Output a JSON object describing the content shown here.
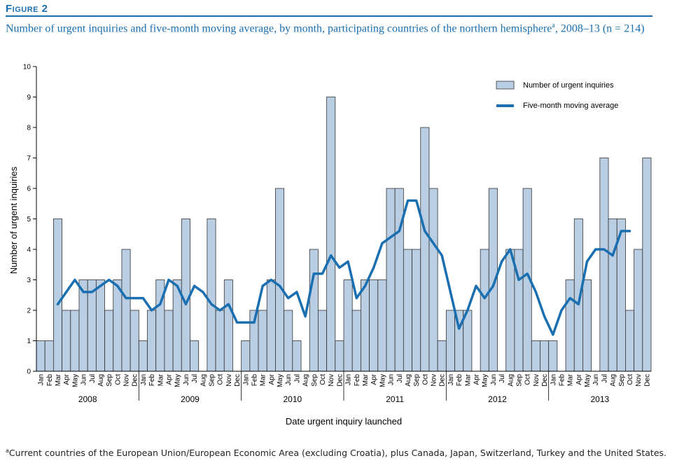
{
  "figure": {
    "label": "Figure 2",
    "title": "Number of urgent inquiries and five-month moving average, by month, participating countries of the northern hemisphere",
    "title_sup": "a",
    "title_tail": ", 2008–13 (n = 214)"
  },
  "footnote": {
    "marker": "a",
    "text": "Current countries of the European Union/European Economic Area (excluding Croatia), plus Canada, Japan, Switzerland, Turkey and the United States."
  },
  "colors": {
    "bar_fill": "#b9cde3",
    "bar_stroke": "#333333",
    "line": "#1a6fb0",
    "title": "#1a6fb0"
  },
  "chart_data": {
    "type": "bar",
    "xlabel": "Date urgent inquiry launched",
    "ylabel": "Number of urgent inquiries",
    "ylim": [
      0,
      10
    ],
    "yticks": [
      0,
      1,
      2,
      3,
      4,
      5,
      6,
      7,
      8,
      9,
      10
    ],
    "legend_position": "top-right",
    "years": [
      "2008",
      "2009",
      "2010",
      "2011",
      "2012",
      "2013"
    ],
    "months": [
      "Jan",
      "Feb",
      "Mar",
      "Apr",
      "May",
      "Jun",
      "Jul",
      "Aug",
      "Sep",
      "Oct",
      "Nov",
      "Dec"
    ],
    "series": [
      {
        "name": "Number of urgent inquiries",
        "type": "bar",
        "values": [
          1,
          1,
          5,
          2,
          2,
          3,
          3,
          3,
          2,
          3,
          4,
          2,
          1,
          2,
          3,
          2,
          3,
          5,
          1,
          0,
          5,
          2,
          3,
          0,
          1,
          2,
          2,
          3,
          6,
          2,
          1,
          0,
          4,
          2,
          9,
          1,
          3,
          2,
          3,
          3,
          3,
          6,
          6,
          4,
          4,
          8,
          6,
          1,
          2,
          2,
          2,
          0,
          4,
          6,
          0,
          4,
          4,
          6,
          1,
          1,
          1,
          0,
          3,
          5,
          3,
          0,
          7,
          5,
          5,
          2,
          4,
          7
        ]
      },
      {
        "name": "Five-month moving average",
        "type": "line",
        "values": [
          null,
          null,
          2.2,
          2.6,
          3.0,
          2.6,
          2.6,
          2.8,
          3.0,
          2.8,
          2.4,
          2.4,
          2.4,
          2.0,
          2.2,
          3.0,
          2.8,
          2.2,
          2.8,
          2.6,
          2.2,
          2.0,
          2.2,
          1.6,
          1.6,
          1.6,
          2.8,
          3.0,
          2.8,
          2.4,
          2.6,
          1.8,
          3.2,
          3.2,
          3.8,
          3.4,
          3.6,
          2.4,
          2.8,
          3.4,
          4.2,
          4.4,
          4.6,
          5.6,
          5.6,
          4.6,
          4.2,
          3.8,
          2.6,
          1.4,
          2.0,
          2.8,
          2.4,
          2.8,
          3.6,
          4.0,
          3.0,
          3.2,
          2.6,
          1.8,
          1.2,
          2.0,
          2.4,
          2.2,
          3.6,
          4.0,
          4.0,
          3.8,
          4.6,
          4.6,
          null,
          null
        ]
      }
    ]
  }
}
